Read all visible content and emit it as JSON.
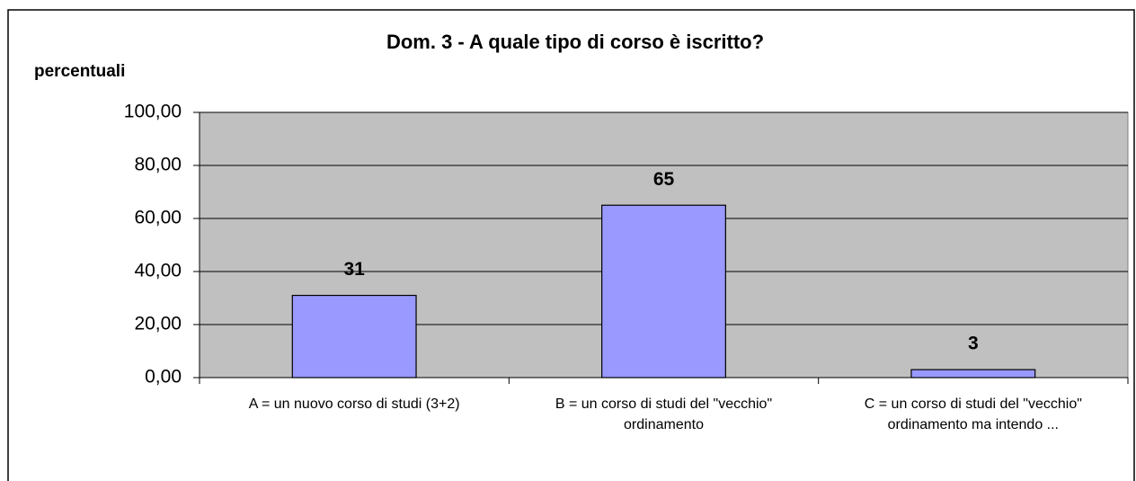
{
  "chart_data": {
    "type": "bar",
    "title": "Dom. 3 - A quale tipo di corso è iscritto?",
    "y_label": "percentuali",
    "categories": [
      "A = un nuovo corso di studi (3+2)",
      "B = un corso di studi del \"vecchio\" ordinamento",
      "C = un corso di studi del \"vecchio\" ordinamento ma intendo ..."
    ],
    "values": [
      31,
      65,
      3
    ],
    "color": "#9999ff",
    "ylim": [
      0,
      100
    ],
    "yticks": [
      {
        "value": 0,
        "label": "0,00"
      },
      {
        "value": 20,
        "label": "20,00"
      },
      {
        "value": 40,
        "label": "40,00"
      },
      {
        "value": 60,
        "label": "60,00"
      },
      {
        "value": 80,
        "label": "80,00"
      },
      {
        "value": 100,
        "label": "100,00"
      }
    ],
    "grid": true
  }
}
